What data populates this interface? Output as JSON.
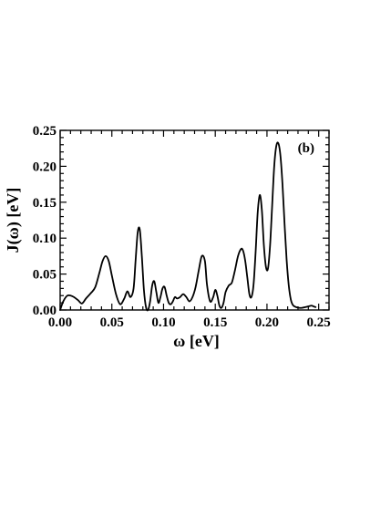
{
  "chart_data": {
    "type": "line",
    "panel_label": "(b)",
    "xlabel": "ω  [eV]",
    "ylabel": "J(ω)  [eV]",
    "xlim": [
      0.0,
      0.26
    ],
    "ylim": [
      0.0,
      0.25
    ],
    "x_ticks": [
      0.0,
      0.05,
      0.1,
      0.15,
      0.2,
      0.25
    ],
    "x_tick_labels": [
      "0.00",
      "0.05",
      "0.10",
      "0.15",
      "0.20",
      "0.25"
    ],
    "y_ticks": [
      0.0,
      0.05,
      0.1,
      0.15,
      0.2,
      0.25
    ],
    "y_tick_labels": [
      "0.00",
      "0.05",
      "0.10",
      "0.15",
      "0.20",
      "0.25"
    ],
    "grid": false,
    "line_color": "#000000",
    "series": [
      {
        "x": [
          0.0,
          0.003,
          0.007,
          0.012,
          0.017,
          0.021,
          0.025,
          0.03,
          0.034,
          0.038,
          0.041,
          0.044,
          0.047,
          0.05,
          0.054,
          0.058,
          0.062,
          0.065,
          0.068,
          0.071,
          0.073,
          0.075,
          0.077,
          0.079,
          0.081,
          0.083,
          0.085,
          0.087,
          0.089,
          0.091,
          0.093,
          0.095,
          0.097,
          0.099,
          0.101,
          0.103,
          0.105,
          0.107,
          0.109,
          0.111,
          0.113,
          0.116,
          0.119,
          0.122,
          0.125,
          0.128,
          0.131,
          0.134,
          0.137,
          0.14,
          0.142,
          0.145,
          0.148,
          0.15,
          0.152,
          0.154,
          0.156,
          0.158,
          0.16,
          0.163,
          0.166,
          0.169,
          0.172,
          0.175,
          0.177,
          0.179,
          0.181,
          0.183,
          0.185,
          0.187,
          0.189,
          0.191,
          0.193,
          0.195,
          0.197,
          0.199,
          0.201,
          0.203,
          0.205,
          0.207,
          0.209,
          0.211,
          0.213,
          0.215,
          0.217,
          0.219,
          0.221,
          0.223,
          0.225,
          0.228,
          0.231,
          0.234,
          0.237,
          0.24,
          0.243,
          0.245,
          0.247
        ],
        "y": [
          0.0,
          0.012,
          0.02,
          0.019,
          0.014,
          0.009,
          0.016,
          0.024,
          0.032,
          0.052,
          0.068,
          0.075,
          0.068,
          0.048,
          0.022,
          0.008,
          0.016,
          0.026,
          0.018,
          0.03,
          0.07,
          0.108,
          0.112,
          0.075,
          0.028,
          0.004,
          0.0,
          0.012,
          0.034,
          0.04,
          0.025,
          0.01,
          0.018,
          0.03,
          0.032,
          0.02,
          0.01,
          0.008,
          0.012,
          0.018,
          0.016,
          0.018,
          0.022,
          0.018,
          0.012,
          0.018,
          0.032,
          0.055,
          0.075,
          0.068,
          0.035,
          0.012,
          0.018,
          0.028,
          0.02,
          0.006,
          0.003,
          0.01,
          0.025,
          0.034,
          0.038,
          0.055,
          0.075,
          0.085,
          0.082,
          0.068,
          0.045,
          0.022,
          0.018,
          0.035,
          0.08,
          0.135,
          0.16,
          0.14,
          0.09,
          0.06,
          0.058,
          0.09,
          0.145,
          0.2,
          0.228,
          0.232,
          0.215,
          0.175,
          0.12,
          0.07,
          0.035,
          0.015,
          0.007,
          0.004,
          0.003,
          0.003,
          0.004,
          0.005,
          0.006,
          0.005,
          0.004
        ]
      }
    ]
  }
}
